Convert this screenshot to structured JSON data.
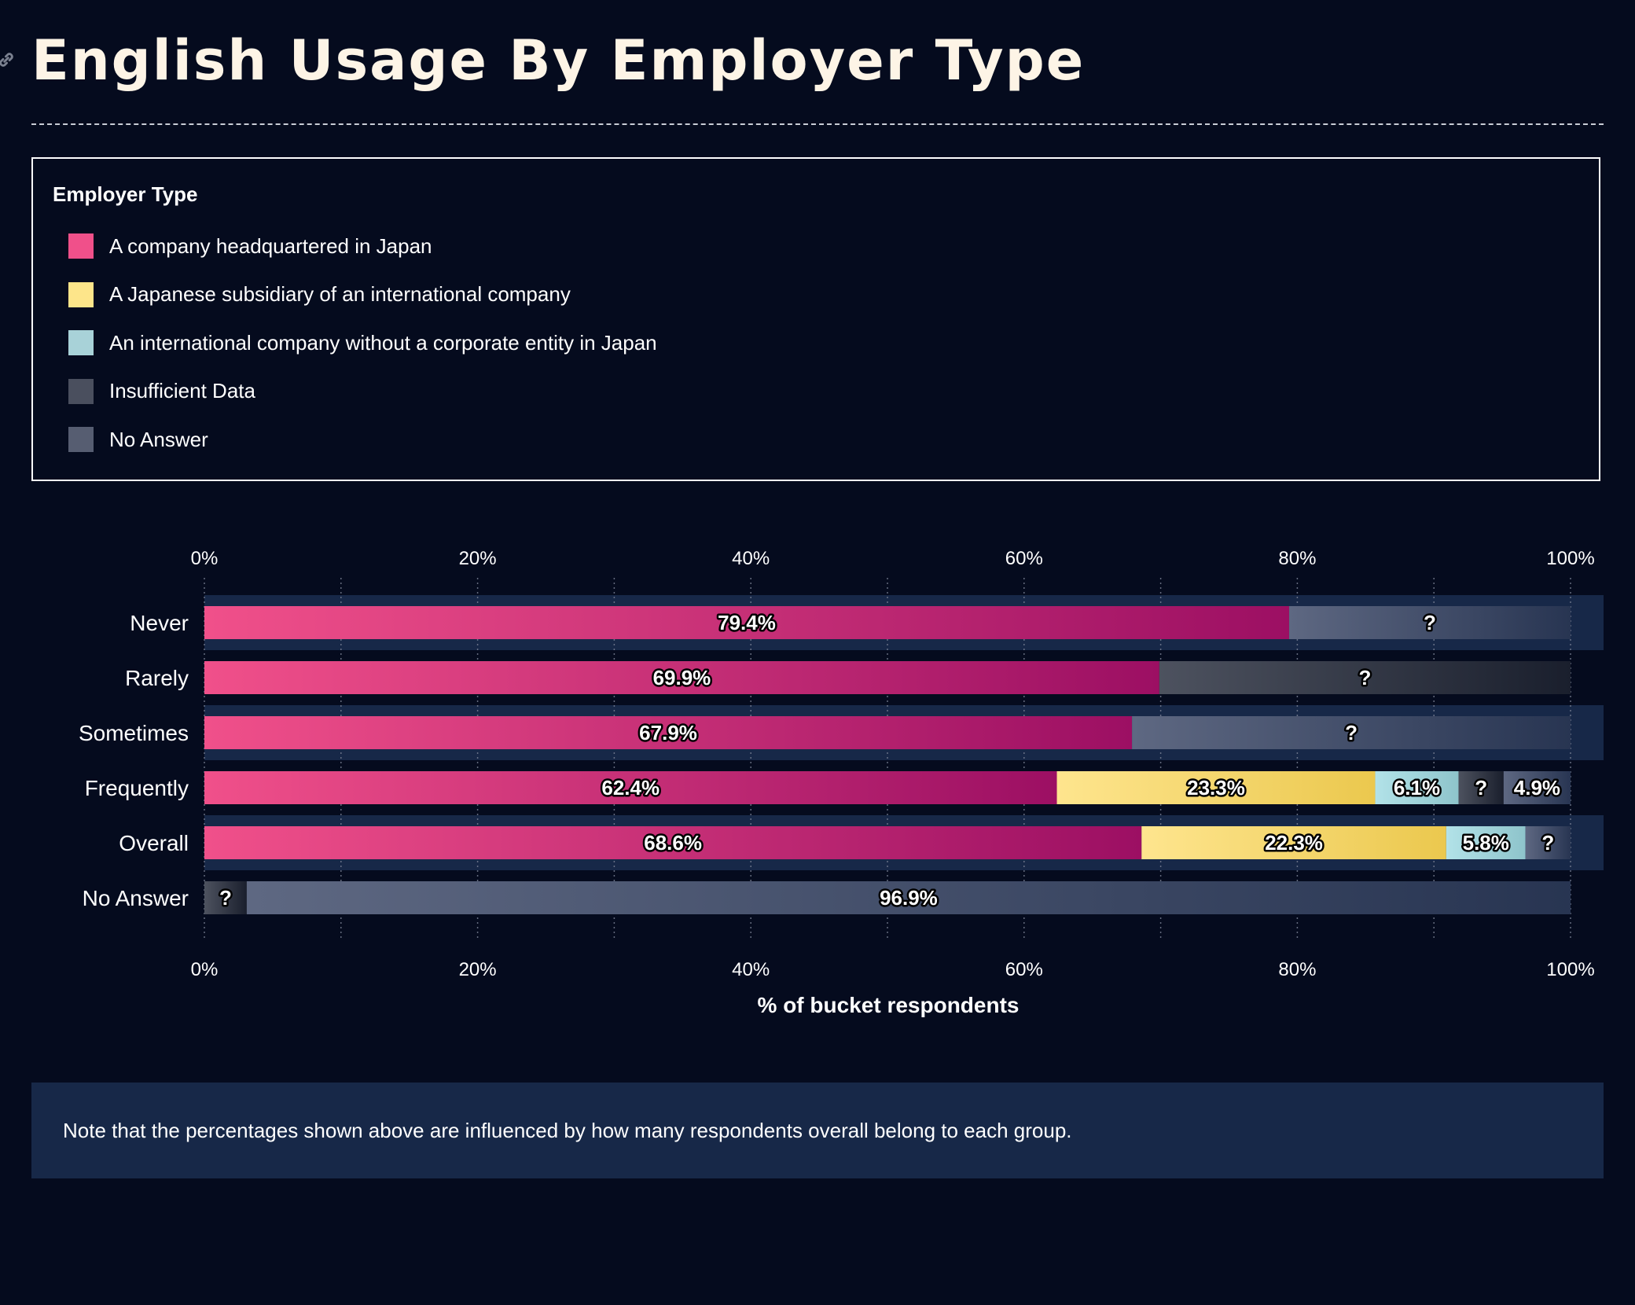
{
  "page": {
    "title": "English Usage By Employer Type",
    "note": "Note that the percentages shown above are influenced by how many respondents overall belong to each group."
  },
  "icons": {
    "anchor": "link-icon"
  },
  "legend": {
    "title": "Employer Type",
    "items": [
      {
        "label": "A company headquartered in Japan",
        "color": "#f0508a"
      },
      {
        "label": "A Japanese subsidiary of an international company",
        "color": "#fde58a"
      },
      {
        "label": "An international company without a corporate entity in Japan",
        "color": "#a8d2d8"
      },
      {
        "label": "Insufficient Data",
        "color": "#4a4f5e"
      },
      {
        "label": "No Answer",
        "color": "#565d71"
      }
    ]
  },
  "chart_data": {
    "type": "bar",
    "orientation": "horizontal",
    "stacked": true,
    "xlabel": "% of bucket respondents",
    "xlim": [
      0,
      100
    ],
    "x_ticks": [
      "0%",
      "20%",
      "40%",
      "60%",
      "80%",
      "100%"
    ],
    "categories": [
      "Never",
      "Rarely",
      "Sometimes",
      "Frequently",
      "Overall",
      "No Answer"
    ],
    "rows": [
      {
        "category": "Never",
        "segments": [
          {
            "series": "A company headquartered in Japan",
            "value": 79.4,
            "label": "79.4%"
          },
          {
            "series": "No Answer",
            "value": 20.6,
            "label": "?"
          }
        ]
      },
      {
        "category": "Rarely",
        "segments": [
          {
            "series": "A company headquartered in Japan",
            "value": 69.9,
            "label": "69.9%"
          },
          {
            "series": "Insufficient Data",
            "value": 30.1,
            "label": "?"
          }
        ]
      },
      {
        "category": "Sometimes",
        "segments": [
          {
            "series": "A company headquartered in Japan",
            "value": 67.9,
            "label": "67.9%"
          },
          {
            "series": "No Answer",
            "value": 32.1,
            "label": "?"
          }
        ]
      },
      {
        "category": "Frequently",
        "segments": [
          {
            "series": "A company headquartered in Japan",
            "value": 62.4,
            "label": "62.4%"
          },
          {
            "series": "A Japanese subsidiary of an international company",
            "value": 23.3,
            "label": "23.3%"
          },
          {
            "series": "An international company without a corporate entity in Japan",
            "value": 6.1,
            "label": "6.1%"
          },
          {
            "series": "Insufficient Data",
            "value": 3.3,
            "label": "?"
          },
          {
            "series": "No Answer",
            "value": 4.9,
            "label": "4.9%"
          }
        ]
      },
      {
        "category": "Overall",
        "segments": [
          {
            "series": "A company headquartered in Japan",
            "value": 68.6,
            "label": "68.6%"
          },
          {
            "series": "A Japanese subsidiary of an international company",
            "value": 22.3,
            "label": "22.3%"
          },
          {
            "series": "An international company without a corporate entity in Japan",
            "value": 5.8,
            "label": "5.8%"
          },
          {
            "series": "No Answer",
            "value": 3.3,
            "label": "?"
          }
        ]
      },
      {
        "category": "No Answer",
        "segments": [
          {
            "series": "Insufficient Data",
            "value": 3.1,
            "label": "?"
          },
          {
            "series": "No Answer",
            "value": 96.9,
            "label": "96.9%"
          }
        ]
      }
    ],
    "grid": true,
    "legend_position": "top"
  }
}
